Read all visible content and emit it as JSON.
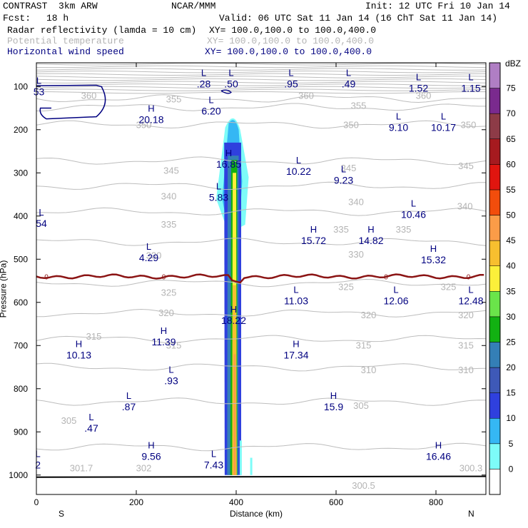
{
  "header": {
    "title_left": "CONTRAST  3km ARW",
    "org": "NCAR/MMM",
    "init": "Init: 12 UTC Fri 10 Jan 14",
    "fcst_label": "Fcst:",
    "fcst_value": "18 h",
    "valid": "Valid: 06 UTC Sat 11 Jan 14 (16 ChT Sat 11 Jan 14)"
  },
  "fields": [
    {
      "name": "Radar reflectivity (lamda = 10 cm)",
      "xy": "XY= 100.0,100.0 to 100.0,400.0",
      "color": "#000000"
    },
    {
      "name": "Potential temperature",
      "xy": "XY= 100.0,100.0 to 100.0,400.0",
      "color": "#b4b4b4"
    },
    {
      "name": "Horizontal wind speed",
      "xy": "XY= 100.0,100.0 to 100.0,400.0",
      "color": "#000080"
    }
  ],
  "chart_data": {
    "type": "contour",
    "xlabel": "Distance (km)",
    "ylabel": "Pressure (hPa)",
    "xlim": [
      0,
      900
    ],
    "ylim": [
      1045,
      45
    ],
    "x_ticks": [
      0,
      200,
      400,
      600,
      800
    ],
    "y_ticks": [
      100,
      200,
      300,
      400,
      500,
      600,
      700,
      800,
      900,
      1000
    ],
    "x_end_labels": {
      "left": "S",
      "right": "N"
    },
    "colorbar": {
      "units": "dBZ",
      "levels": [
        0,
        5,
        10,
        15,
        20,
        25,
        30,
        35,
        40,
        45,
        50,
        55,
        60,
        65,
        70,
        75
      ],
      "colors": [
        "#ffffff",
        "#7dfcf8",
        "#35b7f4",
        "#2f40de",
        "#3e59b7",
        "#347fb6",
        "#12b112",
        "#6ae44a",
        "#fcf03a",
        "#f7bf2f",
        "#fb9c48",
        "#f24d0c",
        "#e0150f",
        "#a61a1f",
        "#8d3b47",
        "#7a2a8e",
        "#b07ec4"
      ]
    },
    "theta_contours": [
      {
        "label": "360",
        "p": 128
      },
      {
        "label": "355",
        "p": 148
      },
      {
        "label": "350",
        "p": 188
      },
      {
        "label": "345",
        "p": 272
      },
      {
        "label": "340",
        "p": 330
      },
      {
        "label": "335",
        "p": 390
      },
      {
        "label": "330",
        "p": 460
      },
      {
        "label": "325",
        "p": 555
      },
      {
        "label": "320",
        "p": 625
      },
      {
        "label": "315",
        "p": 685
      },
      {
        "label": "310",
        "p": 750
      },
      {
        "label": "305",
        "p": 830
      },
      {
        "label": "300",
        "p": 935
      }
    ],
    "theta_labels": [
      {
        "text": "360",
        "x": 105,
        "p": 122
      },
      {
        "text": "355",
        "x": 275,
        "p": 130
      },
      {
        "text": "360",
        "x": 540,
        "p": 122
      },
      {
        "text": "355",
        "x": 645,
        "p": 145
      },
      {
        "text": "360",
        "x": 775,
        "p": 122
      },
      {
        "text": "350",
        "x": 215,
        "p": 190
      },
      {
        "text": "350",
        "x": 630,
        "p": 190
      },
      {
        "text": "350",
        "x": 865,
        "p": 190
      },
      {
        "text": "345",
        "x": 270,
        "p": 295
      },
      {
        "text": "345",
        "x": 625,
        "p": 290
      },
      {
        "text": "345",
        "x": 860,
        "p": 285
      },
      {
        "text": "340",
        "x": 265,
        "p": 355
      },
      {
        "text": "340",
        "x": 640,
        "p": 368
      },
      {
        "text": "340",
        "x": 858,
        "p": 378
      },
      {
        "text": "335",
        "x": 265,
        "p": 420
      },
      {
        "text": "335",
        "x": 610,
        "p": 432
      },
      {
        "text": "335",
        "x": 735,
        "p": 432
      },
      {
        "text": "330",
        "x": 235,
        "p": 492
      },
      {
        "text": "330",
        "x": 640,
        "p": 490
      },
      {
        "text": "325",
        "x": 265,
        "p": 578
      },
      {
        "text": "325",
        "x": 620,
        "p": 565
      },
      {
        "text": "325",
        "x": 825,
        "p": 565
      },
      {
        "text": "320",
        "x": 260,
        "p": 625
      },
      {
        "text": "320",
        "x": 665,
        "p": 630
      },
      {
        "text": "320",
        "x": 860,
        "p": 630
      },
      {
        "text": "315",
        "x": 115,
        "p": 680
      },
      {
        "text": "315",
        "x": 275,
        "p": 700
      },
      {
        "text": "315",
        "x": 655,
        "p": 700
      },
      {
        "text": "315",
        "x": 860,
        "p": 700
      },
      {
        "text": "310",
        "x": 665,
        "p": 757
      },
      {
        "text": "310",
        "x": 860,
        "p": 757
      },
      {
        "text": "305",
        "x": 65,
        "p": 875
      },
      {
        "text": "305",
        "x": 650,
        "p": 840
      },
      {
        "text": "301.7",
        "x": 90,
        "p": 985
      },
      {
        "text": "302",
        "x": 215,
        "p": 985
      },
      {
        "text": "300.5",
        "x": 655,
        "p": 1025
      },
      {
        "text": "300.3",
        "x": 870,
        "p": 985
      }
    ],
    "wind_speed_extrema": [
      {
        "type": "L",
        "value": "53",
        "x": 5,
        "p": 100
      },
      {
        "type": "L",
        "value": ".28",
        "x": 335,
        "p": 82
      },
      {
        "type": "L",
        "value": ".50",
        "x": 390,
        "p": 82
      },
      {
        "type": "L",
        "value": ".95",
        "x": 510,
        "p": 82
      },
      {
        "type": "L",
        "value": ".49",
        "x": 625,
        "p": 82
      },
      {
        "type": "L",
        "value": "1.52",
        "x": 765,
        "p": 92
      },
      {
        "type": "L",
        "value": "1.15",
        "x": 870,
        "p": 92
      },
      {
        "type": "H",
        "value": "20.18",
        "x": 230,
        "p": 165
      },
      {
        "type": "L",
        "value": "6.20",
        "x": 350,
        "p": 145
      },
      {
        "type": "L",
        "value": "9.10",
        "x": 725,
        "p": 183
      },
      {
        "type": "L",
        "value": "10.17",
        "x": 815,
        "p": 183
      },
      {
        "type": "H",
        "value": "16.85",
        "x": 385,
        "p": 268
      },
      {
        "type": "L",
        "value": "10.22",
        "x": 525,
        "p": 285
      },
      {
        "type": "L",
        "value": "9.23",
        "x": 615,
        "p": 305
      },
      {
        "type": "L",
        "value": "5.83",
        "x": 365,
        "p": 345
      },
      {
        "type": "L",
        "value": "54",
        "x": 10,
        "p": 405
      },
      {
        "type": "L",
        "value": "10.46",
        "x": 755,
        "p": 385
      },
      {
        "type": "H",
        "value": "15.72",
        "x": 555,
        "p": 445
      },
      {
        "type": "H",
        "value": "14.82",
        "x": 670,
        "p": 445
      },
      {
        "type": "H",
        "value": "15.32",
        "x": 795,
        "p": 490
      },
      {
        "type": "L",
        "value": "4.29",
        "x": 225,
        "p": 485
      },
      {
        "type": "L",
        "value": "11.03",
        "x": 520,
        "p": 585
      },
      {
        "type": "L",
        "value": "12.06",
        "x": 720,
        "p": 585
      },
      {
        "type": "L",
        "value": "12.48",
        "x": 870,
        "p": 585
      },
      {
        "type": "H",
        "value": "18.22",
        "x": 395,
        "p": 630
      },
      {
        "type": "H",
        "value": "11.39",
        "x": 255,
        "p": 680
      },
      {
        "type": "H",
        "value": "10.13",
        "x": 85,
        "p": 710
      },
      {
        "type": "H",
        "value": "17.34",
        "x": 520,
        "p": 710
      },
      {
        "type": "L",
        "value": ".93",
        "x": 270,
        "p": 770
      },
      {
        "type": "L",
        "value": ".87",
        "x": 185,
        "p": 830
      },
      {
        "type": "L",
        "value": ".47",
        "x": 110,
        "p": 880
      },
      {
        "type": "H",
        "value": "15.9",
        "x": 595,
        "p": 830
      },
      {
        "type": "H",
        "value": "9.56",
        "x": 230,
        "p": 945
      },
      {
        "type": "L",
        "value": "7.43",
        "x": 355,
        "p": 965
      },
      {
        "type": "H",
        "value": "16.46",
        "x": 805,
        "p": 945
      },
      {
        "type": "L",
        "value": "2",
        "x": 3,
        "p": 965
      }
    ],
    "zero_isotherm_label": "0"
  }
}
